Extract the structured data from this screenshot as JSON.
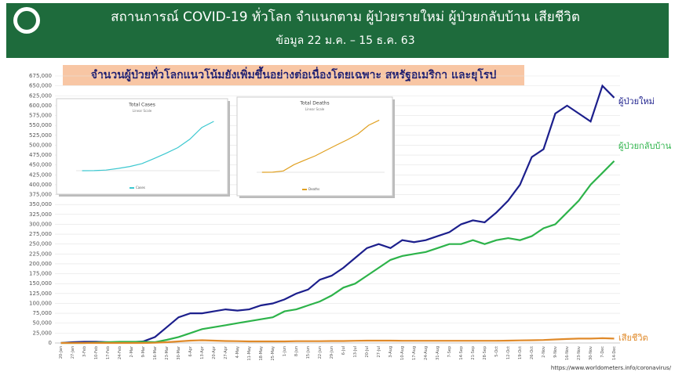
{
  "header": {
    "title": "สถานการณ์ COVID-19 ทั่วโลก จำแนกตาม ผู้ป่วยรายใหม่ ผู้ป่วยกลับบ้าน เสียชีวิต",
    "subtitle": "ข้อมูล 22 ม.ค. – 15 ธ.ค. 63"
  },
  "banner": "จำนวนผู้ป่วยทั่วโลกแนวโน้มยังเพิ่มขึ้นอย่างต่อเนื่องโดยเฉพาะ สหรัฐอเมริกา และยุโรป",
  "source": "https://www.worldometers.info/coronavirus/",
  "chart_data": [
    {
      "type": "line",
      "categories": [
        "20-Jan",
        "27-Jan",
        "3-Feb",
        "10-Feb",
        "17-Feb",
        "24-Feb",
        "2-Mar",
        "9-Mar",
        "16-Mar",
        "23-Mar",
        "30-Mar",
        "6-Apr",
        "13-Apr",
        "20-Apr",
        "27-Apr",
        "4-May",
        "11-May",
        "18-May",
        "25-May",
        "1-Jun",
        "8-Jun",
        "15-Jun",
        "22-Jun",
        "29-Jun",
        "6-Jul",
        "13-Jul",
        "20-Jul",
        "27-Jul",
        "3-Aug",
        "10-Aug",
        "17-Aug",
        "24-Aug",
        "31-Aug",
        "7-Sep",
        "14-Sep",
        "21-Sep",
        "28-Sep",
        "5-Oct",
        "12-Oct",
        "19-Oct",
        "26-Oct",
        "2-Nov",
        "9-Nov",
        "16-Nov",
        "23-Nov",
        "30-Nov",
        "7-Dec",
        "14-Dec"
      ],
      "series": [
        {
          "name": "ผู้ป่วยใหม่",
          "color": "#1c1f8c",
          "values": [
            0,
            2000,
            3000,
            3000,
            2000,
            1000,
            2000,
            4000,
            15000,
            40000,
            65000,
            75000,
            75000,
            80000,
            85000,
            82000,
            85000,
            95000,
            100000,
            110000,
            125000,
            135000,
            160000,
            170000,
            190000,
            215000,
            240000,
            250000,
            240000,
            260000,
            255000,
            260000,
            270000,
            280000,
            300000,
            310000,
            305000,
            330000,
            360000,
            400000,
            470000,
            490000,
            580000,
            600000,
            580000,
            560000,
            650000,
            620000
          ]
        },
        {
          "name": "ผู้ป่วยกลับบ้าน",
          "color": "#2db34a",
          "values": [
            0,
            0,
            0,
            1000,
            2000,
            3000,
            3000,
            3000,
            2000,
            8000,
            15000,
            25000,
            35000,
            40000,
            45000,
            50000,
            55000,
            60000,
            65000,
            80000,
            85000,
            95000,
            105000,
            120000,
            140000,
            150000,
            170000,
            190000,
            210000,
            220000,
            225000,
            230000,
            240000,
            250000,
            250000,
            260000,
            250000,
            260000,
            265000,
            260000,
            270000,
            290000,
            300000,
            330000,
            360000,
            400000,
            430000,
            460000
          ]
        },
        {
          "name": "เสียชีวิต",
          "color": "#e08a2a",
          "values": [
            0,
            0,
            0,
            0,
            0,
            0,
            0,
            0,
            500,
            2000,
            4000,
            6000,
            7000,
            6000,
            5000,
            4500,
            4000,
            4000,
            4000,
            4000,
            4500,
            4500,
            4500,
            5000,
            5000,
            5500,
            6000,
            6000,
            6000,
            5500,
            5500,
            5500,
            5500,
            5500,
            5500,
            5500,
            5500,
            5500,
            6000,
            6500,
            7000,
            7500,
            9000,
            10000,
            11000,
            11000,
            12000,
            11000
          ]
        }
      ],
      "ylim": [
        0,
        675000
      ],
      "yticks": [
        0,
        {
          "value": 25000,
          "label": "25,000"
        },
        {
          "value": 50000,
          "label": "50,000"
        },
        {
          "value": 75000,
          "label": "75,000"
        },
        {
          "value": 100000,
          "label": "100,000"
        },
        {
          "value": 125000,
          "label": "125,000"
        },
        {
          "value": 150000,
          "label": "150,000"
        },
        {
          "value": 175000,
          "label": "175,000"
        },
        {
          "value": 200000,
          "label": "200,000"
        },
        {
          "value": 225000,
          "label": "225,000"
        },
        {
          "value": 250000,
          "label": "250,000"
        },
        {
          "value": 275000,
          "label": "275,000"
        },
        {
          "value": 300000,
          "label": "300,000"
        },
        {
          "value": 325000,
          "label": "325,000"
        },
        {
          "value": 350000,
          "label": "350,000"
        },
        {
          "value": 375000,
          "label": "375,000"
        },
        {
          "value": 400000,
          "label": "400,000"
        },
        {
          "value": 425000,
          "label": "425,000"
        },
        {
          "value": 450000,
          "label": "450,000"
        },
        {
          "value": 475000,
          "label": "475,000"
        },
        {
          "value": 500000,
          "label": "500,000"
        },
        {
          "value": 525000,
          "label": "525,000"
        },
        {
          "value": 550000,
          "label": "550,000"
        },
        {
          "value": 575000,
          "label": "575,000"
        },
        {
          "value": 600000,
          "label": "600,000"
        },
        {
          "value": 625000,
          "label": "625,000"
        },
        {
          "value": 650000,
          "label": "650,000"
        },
        {
          "value": 675000,
          "label": "675,000"
        }
      ],
      "grid": true
    },
    {
      "type": "line",
      "title": "Total Cases",
      "subtitle": "Linear Scale",
      "categories": [
        null,
        null,
        null,
        null,
        null,
        null,
        null,
        null,
        null,
        null,
        null,
        null
      ],
      "series": [
        {
          "name": "Cases",
          "color": "#3cc8d0",
          "values": [
            10000,
            85000,
            860000,
            3300000,
            6200000,
            10400000,
            17600000,
            25400000,
            33700000,
            46000000,
            63000000,
            72000000
          ]
        }
      ],
      "ylim": [
        0,
        80000000
      ]
    },
    {
      "type": "line",
      "title": "Total Deaths",
      "subtitle": "Linear Scale",
      "categories": [
        null,
        null,
        null,
        null,
        null,
        null,
        null,
        null,
        null,
        null,
        null,
        null
      ],
      "series": [
        {
          "name": "Deaths",
          "color": "#e0a020",
          "values": [
            200,
            2900,
            42000,
            235000,
            375000,
            510000,
            680000,
            850000,
            1010000,
            1190000,
            1460000,
            1620000
          ]
        }
      ],
      "ylim": [
        0,
        1800000
      ]
    }
  ]
}
